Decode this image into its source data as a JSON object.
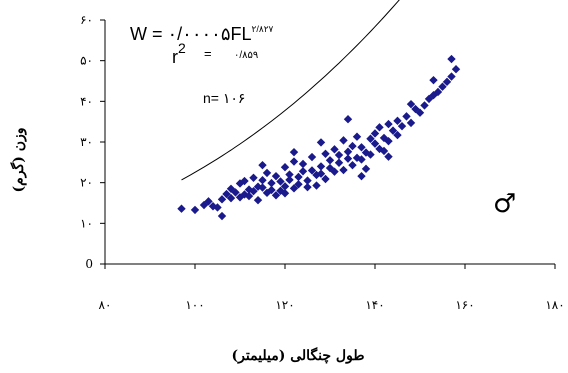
{
  "chart_data": {
    "type": "scatter",
    "title": "",
    "xlabel": "طول چنگالی (میلیمتر)",
    "ylabel": "وزن (گرم)",
    "xlim": [
      80,
      180
    ],
    "ylim": [
      0,
      60
    ],
    "x_ticks": [
      80,
      100,
      120,
      140,
      160,
      180
    ],
    "x_tick_labels": [
      "۸۰",
      "۱۰۰",
      "۱۲۰",
      "۱۴۰",
      "۱۶۰",
      "۱۸۰"
    ],
    "y_ticks": [
      0,
      10,
      20,
      30,
      40,
      50,
      60
    ],
    "y_tick_labels": [
      "0",
      "۱۰",
      "۲۰",
      "۳۰",
      "۴۰",
      "۵۰",
      "۶۰"
    ],
    "grid": false,
    "legend": "none",
    "marker": "diamond",
    "marker_color": "#1a1a8c",
    "trendline_color": "#000000",
    "equation": {
      "main": "W = ۰/۰۰۰۰۵FL",
      "exponent": "۲/۸۲۷",
      "r2_label": "r",
      "r2_exp": "2",
      "r2_eq": "=",
      "r2_value": "۰/۸۵۹",
      "n_text": "n= ۱۰۶"
    },
    "symbol": "♂",
    "trendline": {
      "a": 5e-05,
      "b": 2.827,
      "x_range": [
        97,
        158
      ]
    },
    "points": [
      [
        97,
        13.6
      ],
      [
        100,
        13.3
      ],
      [
        102,
        14.5
      ],
      [
        103,
        15.4
      ],
      [
        104,
        14.2
      ],
      [
        105,
        13.9
      ],
      [
        106,
        11.8
      ],
      [
        106,
        15.9
      ],
      [
        107,
        17.2
      ],
      [
        108,
        16.2
      ],
      [
        108,
        18.5
      ],
      [
        109,
        17.6
      ],
      [
        110,
        16.4
      ],
      [
        110,
        19.8
      ],
      [
        111,
        17.1
      ],
      [
        111,
        20.4
      ],
      [
        112,
        18.3
      ],
      [
        112,
        16.7
      ],
      [
        113,
        21.2
      ],
      [
        113,
        17.9
      ],
      [
        114,
        19.0
      ],
      [
        114,
        15.7
      ],
      [
        115,
        20.6
      ],
      [
        115,
        18.8
      ],
      [
        116,
        17.5
      ],
      [
        116,
        22.4
      ],
      [
        117,
        19.9
      ],
      [
        117,
        18.2
      ],
      [
        118,
        21.6
      ],
      [
        118,
        16.9
      ],
      [
        119,
        20.3
      ],
      [
        119,
        18.0
      ],
      [
        120,
        23.8
      ],
      [
        120,
        19.1
      ],
      [
        120,
        17.4
      ],
      [
        121,
        22.0
      ],
      [
        121,
        20.7
      ],
      [
        122,
        18.6
      ],
      [
        122,
        25.2
      ],
      [
        123,
        21.4
      ],
      [
        123,
        19.6
      ],
      [
        124,
        24.6
      ],
      [
        124,
        22.8
      ],
      [
        125,
        20.5
      ],
      [
        125,
        18.9
      ],
      [
        126,
        26.3
      ],
      [
        126,
        23.0
      ],
      [
        127,
        21.9
      ],
      [
        127,
        19.3
      ],
      [
        128,
        24.0
      ],
      [
        128,
        22.2
      ],
      [
        129,
        27.1
      ],
      [
        129,
        20.9
      ],
      [
        130,
        25.5
      ],
      [
        130,
        23.6
      ],
      [
        131,
        22.7
      ],
      [
        131,
        28.2
      ],
      [
        132,
        24.9
      ],
      [
        132,
        26.8
      ],
      [
        133,
        23.1
      ],
      [
        133,
        30.4
      ],
      [
        134,
        25.9
      ],
      [
        134,
        27.6
      ],
      [
        135,
        29.0
      ],
      [
        135,
        24.3
      ],
      [
        136,
        26.1
      ],
      [
        136,
        31.3
      ],
      [
        137,
        25.7
      ],
      [
        137,
        28.7
      ],
      [
        138,
        27.4
      ],
      [
        138,
        23.4
      ],
      [
        139,
        30.8
      ],
      [
        139,
        26.9
      ],
      [
        140,
        29.6
      ],
      [
        140,
        32.1
      ],
      [
        141,
        28.3
      ],
      [
        141,
        33.6
      ],
      [
        142,
        31.0
      ],
      [
        142,
        27.8
      ],
      [
        143,
        34.4
      ],
      [
        143,
        30.2
      ],
      [
        144,
        32.8
      ],
      [
        145,
        35.2
      ],
      [
        145,
        31.7
      ],
      [
        146,
        33.9
      ],
      [
        147,
        36.3
      ],
      [
        148,
        34.7
      ],
      [
        149,
        38.1
      ],
      [
        150,
        37.2
      ],
      [
        151,
        39.0
      ],
      [
        152,
        40.6
      ],
      [
        153,
        41.5
      ],
      [
        154,
        42.3
      ],
      [
        155,
        43.6
      ],
      [
        156,
        44.8
      ],
      [
        157,
        46.1
      ],
      [
        158,
        47.9
      ],
      [
        115,
        24.3
      ],
      [
        122,
        27.5
      ],
      [
        128,
        29.9
      ],
      [
        134,
        35.6
      ],
      [
        137,
        21.6
      ],
      [
        143,
        26.4
      ],
      [
        148,
        39.3
      ],
      [
        153,
        45.2
      ],
      [
        157,
        50.4
      ]
    ]
  }
}
